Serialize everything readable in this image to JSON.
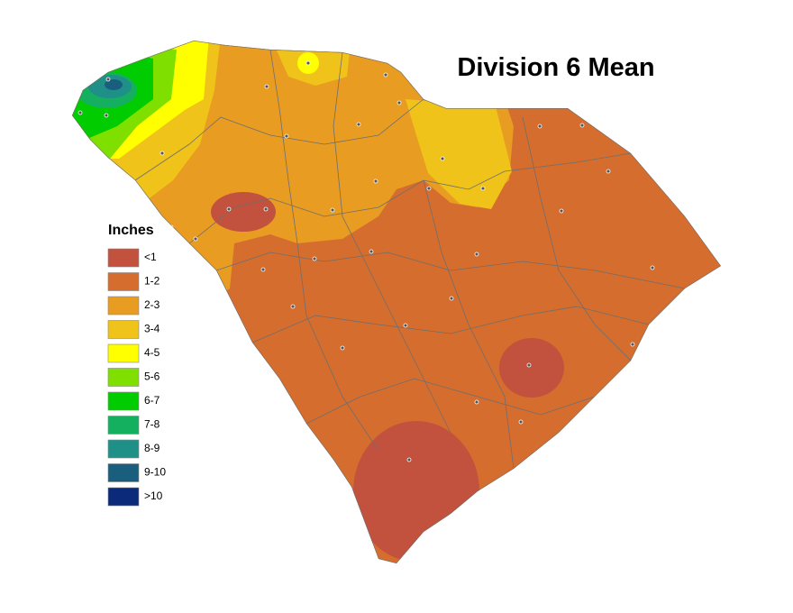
{
  "title": "Division 6 Mean",
  "legend": {
    "title": "Inches",
    "items": [
      {
        "label": "<1",
        "color": "#c2523e"
      },
      {
        "label": "1-2",
        "color": "#d56d2e"
      },
      {
        "label": "2-3",
        "color": "#e89c22"
      },
      {
        "label": "3-4",
        "color": "#f0c31a"
      },
      {
        "label": "4-5",
        "color": "#ffff00"
      },
      {
        "label": "5-6",
        "color": "#7fe000"
      },
      {
        "label": "6-7",
        "color": "#00cc00"
      },
      {
        "label": "7-8",
        "color": "#14b060"
      },
      {
        "label": "8-9",
        "color": "#1f9088"
      },
      {
        "label": "9-10",
        "color": "#1a5e7e"
      },
      {
        "label": ">10",
        "color": "#0b2a7a"
      }
    ]
  }
}
